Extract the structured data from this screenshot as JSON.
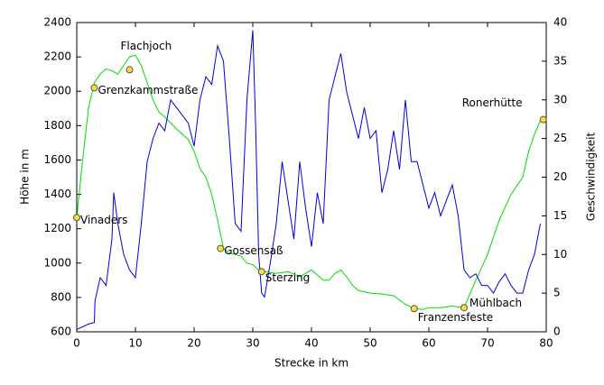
{
  "chart_data": {
    "type": "line",
    "xlabel": "Strecke in km",
    "ylabel": "Höhe in m",
    "y2label": "Geschwindigkeit",
    "xlim": [
      0,
      80
    ],
    "xticks": [
      0,
      10,
      20,
      30,
      40,
      50,
      60,
      70,
      80
    ],
    "ylim": [
      600,
      2400
    ],
    "yticks": [
      600,
      800,
      1000,
      1200,
      1400,
      1600,
      1800,
      2000,
      2200,
      2400
    ],
    "y2lim": [
      0,
      40
    ],
    "y2ticks": [
      0,
      5,
      10,
      15,
      20,
      25,
      30,
      35,
      40
    ],
    "series": [
      {
        "color": "#00dd00",
        "x": [
          0,
          1,
          2,
          3,
          4,
          5,
          6,
          7,
          8,
          9,
          10,
          11,
          12,
          13,
          14,
          15,
          17,
          18,
          19,
          20,
          21,
          22,
          23,
          24,
          25,
          26,
          27,
          28,
          29,
          30,
          31,
          32,
          33,
          34,
          36,
          38,
          40,
          41,
          42,
          43,
          44,
          45,
          46,
          47,
          48,
          50,
          52,
          54,
          56,
          57.5,
          59,
          60,
          62,
          64,
          66,
          68,
          70,
          72,
          74,
          76,
          77,
          78,
          79
        ],
        "values": [
          1265,
          1600,
          1900,
          2050,
          2100,
          2130,
          2120,
          2100,
          2150,
          2200,
          2210,
          2150,
          2050,
          1950,
          1880,
          1850,
          1780,
          1750,
          1720,
          1650,
          1550,
          1500,
          1400,
          1250,
          1085,
          1060,
          1050,
          1040,
          1000,
          990,
          960,
          950,
          945,
          940,
          950,
          920,
          960,
          930,
          900,
          900,
          940,
          960,
          920,
          870,
          840,
          825,
          820,
          810,
          760,
          735,
          730,
          740,
          740,
          750,
          740,
          900,
          1050,
          1250,
          1400,
          1500,
          1650,
          1750,
          1830
        ]
      },
      {
        "color": "#0000dd",
        "axis": "y2",
        "x": [
          0,
          2,
          3,
          3.1,
          4,
          5,
          6,
          6.3,
          7,
          8,
          9,
          10,
          11,
          12,
          13,
          14,
          15,
          16,
          17,
          18,
          19,
          20,
          21,
          22,
          23,
          24,
          25,
          26,
          27,
          28,
          29,
          30,
          30.5,
          31,
          31.5,
          32,
          33,
          34,
          35,
          36,
          37,
          38,
          39,
          40,
          41,
          42,
          43,
          44,
          45,
          46,
          47,
          48,
          49,
          50,
          51,
          52,
          53,
          54,
          55,
          56,
          57,
          58,
          59,
          60,
          61,
          62,
          63,
          64,
          65,
          66,
          67,
          68,
          69,
          70,
          71,
          72,
          73,
          74,
          75,
          76,
          77,
          78,
          79
        ],
        "values": [
          0.3,
          1,
          1.2,
          4,
          7,
          6,
          12,
          18,
          14,
          10,
          8,
          7,
          14,
          22,
          25,
          27,
          26,
          30,
          29,
          28,
          27,
          24,
          30,
          33,
          32,
          37,
          35,
          25,
          14,
          13,
          30,
          39,
          26,
          10,
          5,
          4.5,
          9,
          14,
          22,
          17,
          12,
          22,
          16,
          11,
          18,
          14,
          30,
          33,
          36,
          31,
          28,
          25,
          29,
          25,
          26,
          18,
          21,
          26,
          21,
          30,
          22,
          22,
          19,
          16,
          18,
          15,
          17,
          19,
          15,
          8,
          7,
          7.5,
          6,
          6,
          5,
          6.5,
          7.5,
          6,
          5,
          5,
          8,
          10,
          14
        ]
      }
    ],
    "annotations": [
      {
        "label": "Vinaders",
        "x": 0,
        "y": 1265
      },
      {
        "label": "Grenzkammstraße",
        "x": 3,
        "y": 2020
      },
      {
        "label": "Flachjoch",
        "x": 9,
        "y": 2125
      },
      {
        "label": "Gossensaß",
        "x": 24.5,
        "y": 1085
      },
      {
        "label": "Sterzing",
        "x": 31.5,
        "y": 950
      },
      {
        "label": "Franzensfeste",
        "x": 57.5,
        "y": 735
      },
      {
        "label": "Mühlbach",
        "x": 66,
        "y": 740
      },
      {
        "label": "Ronerhütte",
        "x": 79.5,
        "y": 1835
      }
    ]
  }
}
